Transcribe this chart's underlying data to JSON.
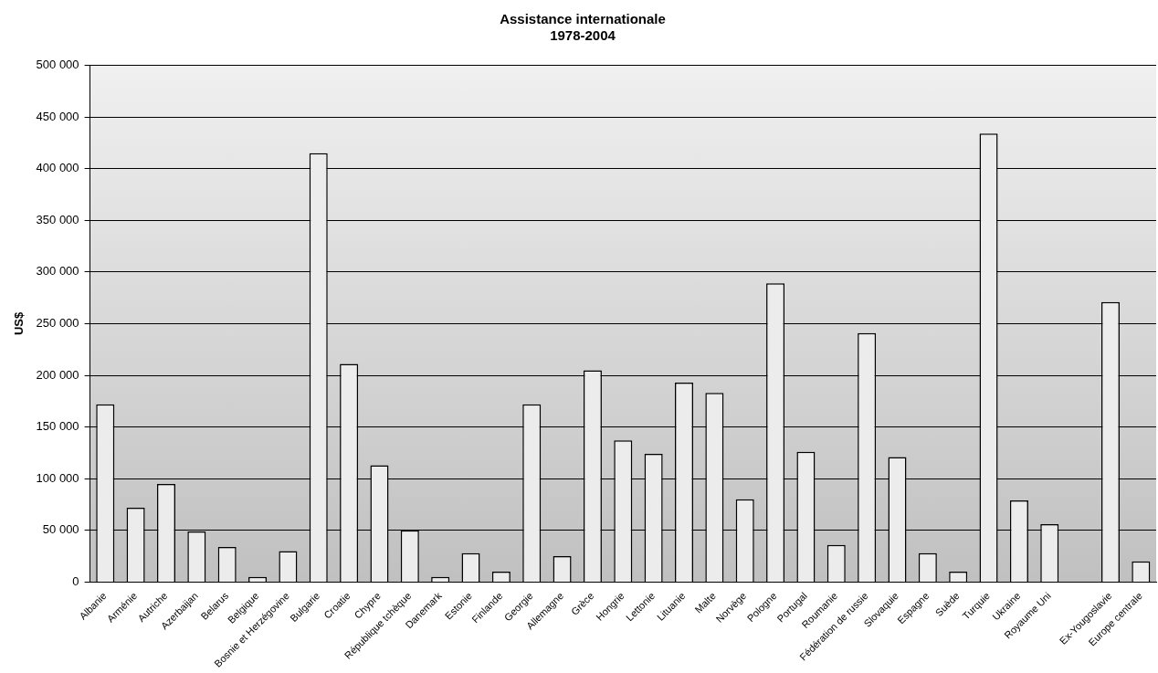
{
  "chart_data": {
    "type": "bar",
    "title": "Assistance internationale",
    "subtitle": "1978-2004",
    "ylabel": "US$",
    "categories": [
      "Albanie",
      "Arménie",
      "Autriche",
      "Azerbaijan",
      "Belarus",
      "Belgique",
      "Bosnie et Herzégovine",
      "Bulgarie",
      "Croatie",
      "Chypre",
      "République tchèque",
      "Danemark",
      "Estonie",
      "Finlande",
      "Georgie",
      "Allemagne",
      "Grèce",
      "Hongrie",
      "Lettonie",
      "Lituanie",
      "Malte",
      "Norvège",
      "Pologne",
      "Portugal",
      "Roumanie",
      "Fédération de russie",
      "Slovaquie",
      "Espagne",
      "Suède",
      "Turquie",
      "Ukraine",
      "Royaume Uni",
      null,
      "Ex-Yougoslavie",
      "Europe centrale"
    ],
    "values": [
      172000,
      72000,
      95000,
      49000,
      34000,
      5000,
      30000,
      415000,
      211000,
      113000,
      50000,
      5000,
      28000,
      10000,
      172000,
      25000,
      205000,
      137000,
      124000,
      193000,
      183000,
      80000,
      289000,
      126000,
      36000,
      241000,
      121000,
      28000,
      10000,
      434000,
      79000,
      56000,
      null,
      271000,
      20000
    ],
    "color": "#ececec",
    "ylim": [
      0,
      500000
    ],
    "yticks": [
      {
        "value": 0,
        "label": "0"
      },
      {
        "value": 50000,
        "label": "50 000"
      },
      {
        "value": 100000,
        "label": "100 000"
      },
      {
        "value": 150000,
        "label": "150 000"
      },
      {
        "value": 200000,
        "label": "200 000"
      },
      {
        "value": 250000,
        "label": "250 000"
      },
      {
        "value": 300000,
        "label": "300 000"
      },
      {
        "value": 350000,
        "label": "350 000"
      },
      {
        "value": 400000,
        "label": "400 000"
      },
      {
        "value": 450000,
        "label": "450 000"
      },
      {
        "value": 500000,
        "label": "500 000"
      }
    ],
    "grid": "y",
    "legend": false
  }
}
